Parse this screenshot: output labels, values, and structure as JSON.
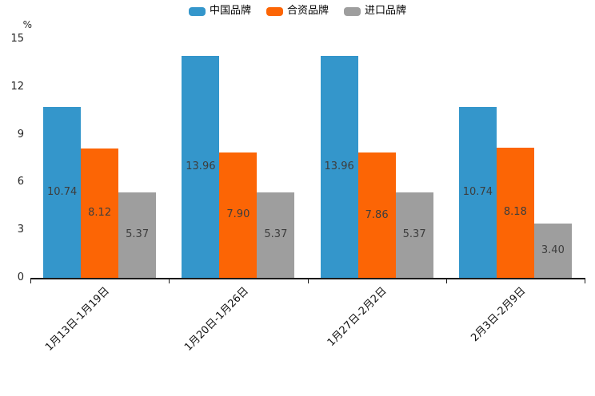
{
  "chart_data": {
    "type": "bar",
    "title": "",
    "unit": "%",
    "categories": [
      "1月13日-1月19日",
      "1月20日-1月26日",
      "1月27日-2月2日",
      "2月3日-2月9日"
    ],
    "series": [
      {
        "name": "中国品牌",
        "color": "#3496CB",
        "values": [
          10.74,
          13.96,
          13.96,
          10.74
        ]
      },
      {
        "name": "合资品牌",
        "color": "#FC6505",
        "values": [
          8.12,
          7.9,
          7.86,
          8.18
        ]
      },
      {
        "name": "进口品牌",
        "color": "#9E9E9E",
        "values": [
          5.37,
          5.37,
          5.37,
          3.4
        ]
      }
    ],
    "ylim": [
      0,
      15
    ],
    "yticks": [
      0,
      3,
      6,
      9,
      12,
      15
    ],
    "grid": false,
    "legend_position": "top-center",
    "value_labels": true,
    "value_label_decimals": 2,
    "x_label_rotation_deg": 45
  }
}
